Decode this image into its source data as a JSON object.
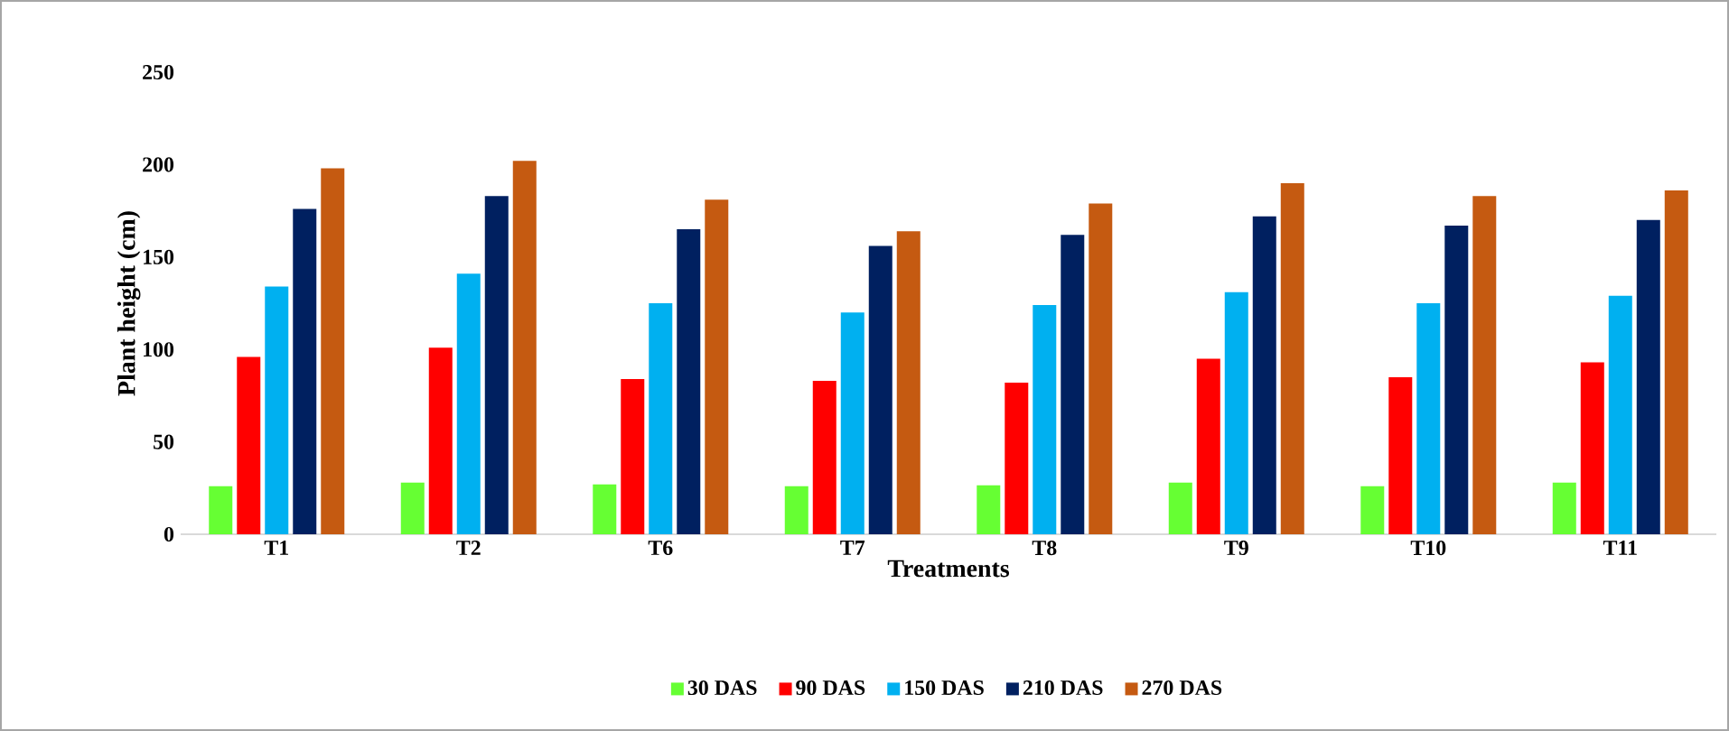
{
  "chart_data": {
    "type": "bar",
    "xlabel": "Treatments",
    "ylabel": "Plant height (cm)",
    "categories": [
      "T1",
      "T2",
      "T6",
      "T7",
      "T8",
      "T9",
      "T10",
      "T11"
    ],
    "series": [
      {
        "name": "30 DAS",
        "color": "#66ff33",
        "values": [
          26,
          28,
          27,
          26,
          26.5,
          28,
          26,
          28
        ]
      },
      {
        "name": "90 DAS",
        "color": "#ff0000",
        "values": [
          96,
          101,
          84,
          83,
          82,
          95,
          85,
          93
        ]
      },
      {
        "name": "150 DAS",
        "color": "#00b0f0",
        "values": [
          134,
          141,
          125,
          120,
          124,
          131,
          125,
          129
        ]
      },
      {
        "name": "210 DAS",
        "color": "#002060",
        "values": [
          176,
          183,
          165,
          156,
          162,
          172,
          167,
          170
        ]
      },
      {
        "name": "270 DAS",
        "color": "#c55a11",
        "values": [
          198,
          202,
          181,
          164,
          179,
          190,
          183,
          186
        ]
      }
    ],
    "ylim": [
      0,
      250
    ],
    "yticks": [
      0,
      50,
      100,
      150,
      200,
      250
    ],
    "legend": "bottom"
  }
}
